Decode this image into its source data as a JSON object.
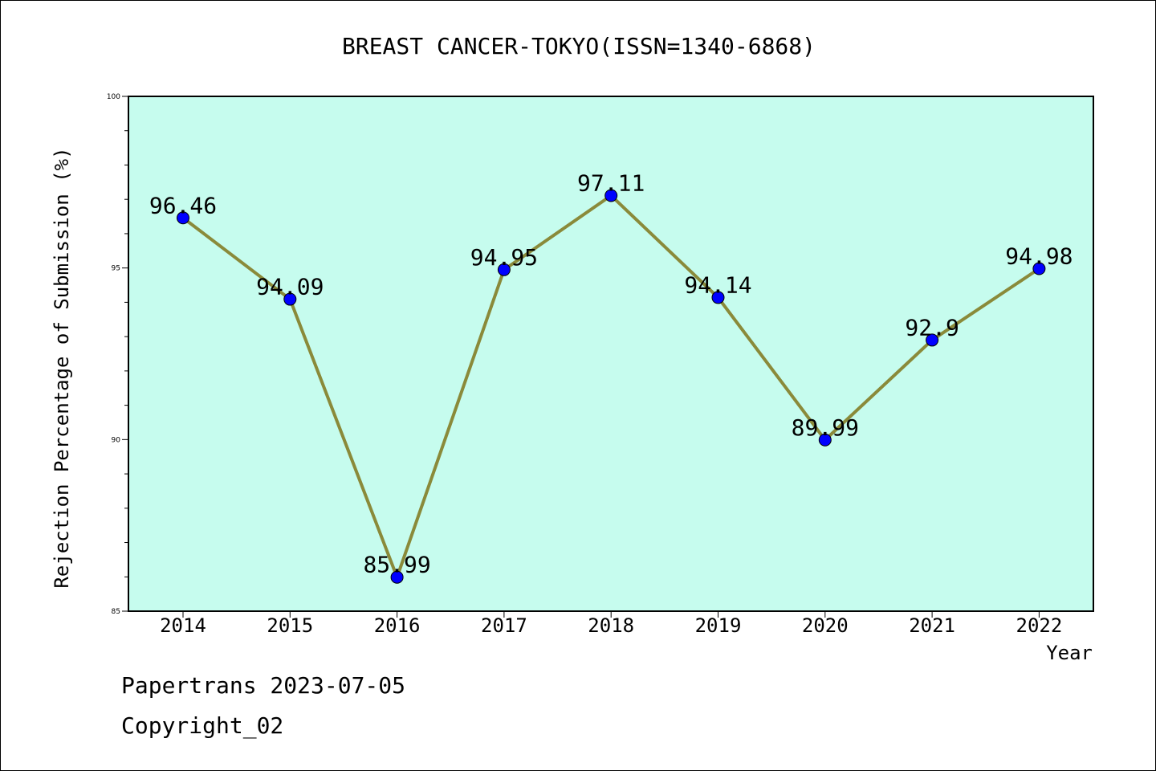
{
  "chart_data": {
    "type": "line",
    "title": "BREAST CANCER-TOKYO(ISSN=1340-6868)",
    "xlabel": "Year",
    "ylabel": "Rejection Percentage of Submission (%)",
    "categories": [
      "2014",
      "2015",
      "2016",
      "2017",
      "2018",
      "2019",
      "2020",
      "2021",
      "2022"
    ],
    "series": [
      {
        "values": [
          96.46,
          94.09,
          85.99,
          94.95,
          97.11,
          94.14,
          89.99,
          92.9,
          94.98
        ],
        "labels": [
          "96.46",
          "94.09",
          "85.99",
          "94.95",
          "97.11",
          "94.14",
          "89.99",
          "92.9",
          "94.98"
        ]
      }
    ],
    "ylim": [
      85,
      100
    ],
    "yticks": [
      "85",
      "90",
      "95",
      "100"
    ],
    "grid": false,
    "legend": "none",
    "colors": {
      "plot_background": "#c6fcee",
      "line": "#8a8a3a",
      "marker": "#0000ff"
    }
  },
  "footer": {
    "date_text": "Papertrans 2023-07-05",
    "copyright_text": "Copyright_02"
  }
}
